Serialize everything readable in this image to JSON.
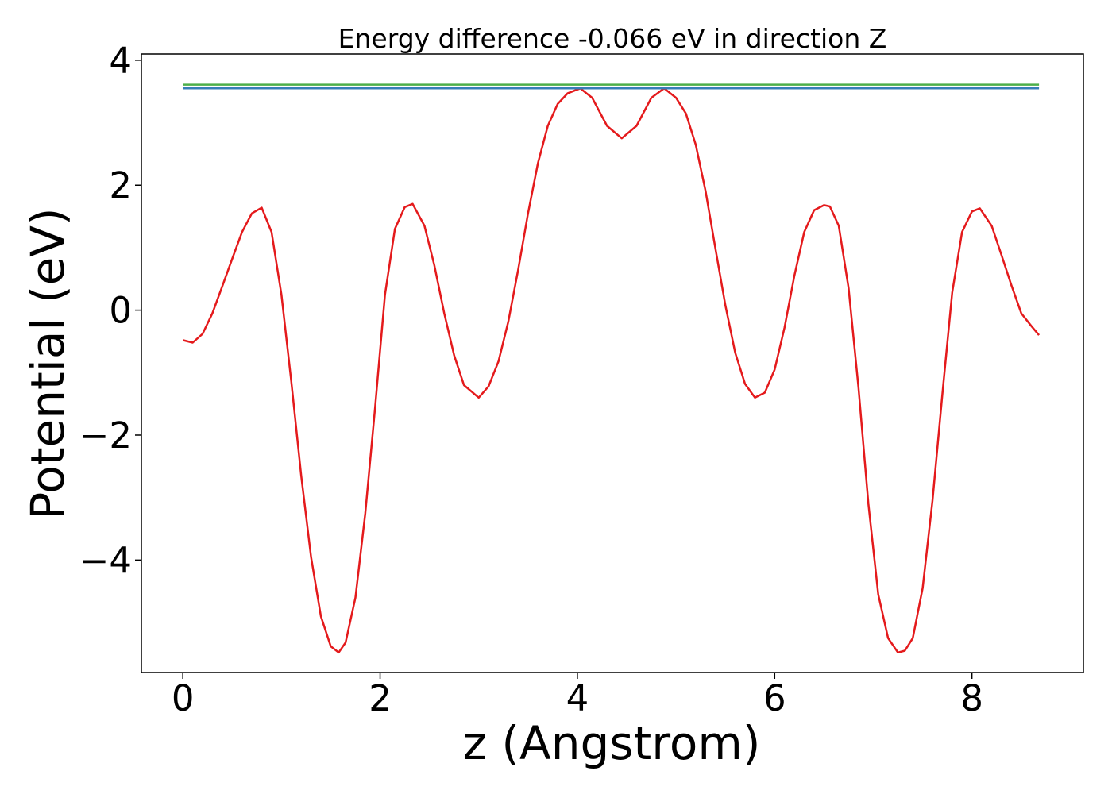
{
  "chart_data": {
    "type": "line",
    "title": "Energy difference -0.066 eV in direction Z",
    "xlabel": "z (Angstrom)",
    "ylabel": "Potential (eV)",
    "xlim": [
      -0.42,
      9.13
    ],
    "ylim": [
      -5.8,
      4.1
    ],
    "x_ticks": [
      0,
      2,
      4,
      6,
      8
    ],
    "x_tick_labels": [
      "0",
      "2",
      "4",
      "6",
      "8"
    ],
    "y_ticks": [
      -4,
      -2,
      0,
      2,
      4
    ],
    "y_tick_labels": [
      "−4",
      "−2",
      "0",
      "2",
      "4"
    ],
    "grid": false,
    "series": [
      {
        "color": "#e41a1c",
        "x": [
          0.0,
          0.1,
          0.2,
          0.3,
          0.4,
          0.5,
          0.6,
          0.7,
          0.8,
          0.9,
          1.0,
          1.1,
          1.2,
          1.3,
          1.4,
          1.5,
          1.58,
          1.65,
          1.75,
          1.85,
          1.95,
          2.05,
          2.15,
          2.25,
          2.33,
          2.45,
          2.55,
          2.65,
          2.75,
          2.85,
          3.0,
          3.1,
          3.2,
          3.3,
          3.4,
          3.5,
          3.6,
          3.7,
          3.8,
          3.9,
          4.03,
          4.15,
          4.3,
          4.45,
          4.6,
          4.75,
          4.88,
          5.0,
          5.1,
          5.2,
          5.3,
          5.4,
          5.5,
          5.6,
          5.7,
          5.8,
          5.9,
          6.0,
          6.1,
          6.2,
          6.3,
          6.4,
          6.5,
          6.56,
          6.65,
          6.75,
          6.85,
          6.95,
          7.05,
          7.15,
          7.25,
          7.32,
          7.4,
          7.5,
          7.6,
          7.7,
          7.8,
          7.9,
          8.0,
          8.08,
          8.2,
          8.3,
          8.4,
          8.5,
          8.6,
          8.68
        ],
        "values": [
          -0.48,
          -0.52,
          -0.38,
          -0.05,
          0.38,
          0.82,
          1.25,
          1.55,
          1.64,
          1.25,
          0.25,
          -1.15,
          -2.65,
          -3.95,
          -4.9,
          -5.38,
          -5.48,
          -5.32,
          -4.6,
          -3.25,
          -1.55,
          0.25,
          1.3,
          1.65,
          1.7,
          1.35,
          0.72,
          -0.05,
          -0.72,
          -1.2,
          -1.4,
          -1.22,
          -0.82,
          -0.18,
          0.65,
          1.55,
          2.35,
          2.95,
          3.3,
          3.47,
          3.55,
          3.4,
          2.95,
          2.75,
          2.95,
          3.4,
          3.55,
          3.4,
          3.15,
          2.65,
          1.9,
          0.98,
          0.08,
          -0.68,
          -1.18,
          -1.4,
          -1.32,
          -0.95,
          -0.28,
          0.55,
          1.25,
          1.6,
          1.68,
          1.66,
          1.35,
          0.35,
          -1.25,
          -3.1,
          -4.55,
          -5.25,
          -5.48,
          -5.45,
          -5.25,
          -4.45,
          -3.05,
          -1.35,
          0.28,
          1.25,
          1.58,
          1.63,
          1.35,
          0.88,
          0.4,
          -0.05,
          -0.25,
          -0.4
        ]
      },
      {
        "color": "#377eb8",
        "x": [
          0.0,
          8.68
        ],
        "values": [
          3.55,
          3.55
        ]
      },
      {
        "color": "#4daf4a",
        "x": [
          0.0,
          8.68
        ],
        "values": [
          3.61,
          3.61
        ]
      }
    ]
  }
}
